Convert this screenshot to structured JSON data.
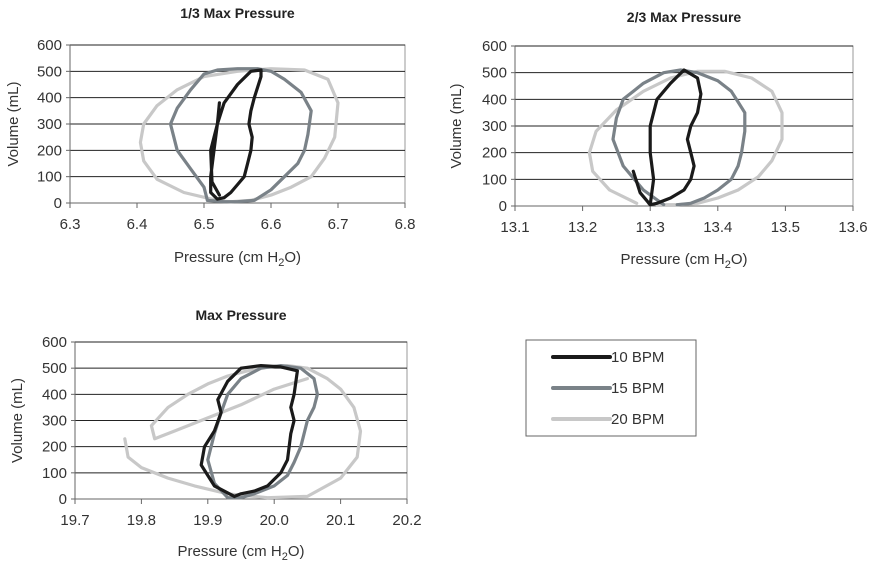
{
  "chart_data": [
    {
      "type": "line",
      "title": "1/3 Max Pressure",
      "xlabel": "Pressure (cm H2O)",
      "xlabel_main": "Pressure (cm H",
      "xlabel_sub": "2",
      "xlabel_tail": "O)",
      "ylabel": "Volume (mL)",
      "xlim": [
        6.3,
        6.8
      ],
      "ylim": [
        0,
        600
      ],
      "xticks": [
        "6.3",
        "6.4",
        "6.5",
        "6.6",
        "6.7",
        "6.8"
      ],
      "yticks": [
        "0",
        "100",
        "200",
        "300",
        "400",
        "500",
        "600"
      ],
      "grid": true,
      "series": [
        {
          "name": "10 BPM",
          "color": "#1a1a1a",
          "x": [
            6.523,
            6.512,
            6.51,
            6.52,
            6.53,
            6.55,
            6.57,
            6.585,
            6.585,
            6.575,
            6.57,
            6.567,
            6.572,
            6.57,
            6.565,
            6.56,
            6.55,
            6.54,
            6.53,
            6.52,
            6.51,
            6.51,
            6.515,
            6.52,
            6.523
          ],
          "y": [
            30,
            80,
            200,
            300,
            380,
            450,
            500,
            505,
            480,
            400,
            350,
            300,
            250,
            200,
            150,
            100,
            70,
            40,
            20,
            15,
            40,
            100,
            200,
            300,
            380
          ]
        },
        {
          "name": "15 BPM",
          "color": "#7a8288",
          "x": [
            6.505,
            6.5,
            6.48,
            6.46,
            6.45,
            6.46,
            6.48,
            6.5,
            6.52,
            6.55,
            6.58,
            6.6,
            6.62,
            6.645,
            6.66,
            6.655,
            6.65,
            6.64,
            6.62,
            6.6,
            6.575,
            6.55,
            6.53,
            6.505
          ],
          "y": [
            10,
            60,
            130,
            200,
            300,
            360,
            430,
            490,
            505,
            510,
            510,
            500,
            470,
            420,
            350,
            260,
            200,
            150,
            100,
            50,
            10,
            5,
            5,
            10
          ]
        },
        {
          "name": "20 BPM",
          "color": "#c8c8c8",
          "x": [
            6.52,
            6.47,
            6.43,
            6.41,
            6.405,
            6.41,
            6.43,
            6.46,
            6.5,
            6.55,
            6.6,
            6.65,
            6.685,
            6.7,
            6.695,
            6.68,
            6.66,
            6.63,
            6.6,
            6.57,
            6.54,
            6.51
          ],
          "y": [
            10,
            40,
            90,
            160,
            230,
            300,
            370,
            430,
            480,
            500,
            510,
            505,
            470,
            380,
            250,
            170,
            100,
            60,
            30,
            10,
            5,
            10
          ]
        }
      ]
    },
    {
      "type": "line",
      "title": "2/3 Max Pressure",
      "xlabel": "Pressure (cm H2O)",
      "xlabel_main": "Pressure (cm H",
      "xlabel_sub": "2",
      "xlabel_tail": "O)",
      "ylabel": "Volume (mL)",
      "xlim": [
        13.1,
        13.6
      ],
      "ylim": [
        0,
        600
      ],
      "xticks": [
        "13.1",
        "13.2",
        "13.3",
        "13.4",
        "13.5",
        "13.6"
      ],
      "yticks": [
        "0",
        "100",
        "200",
        "300",
        "400",
        "500",
        "600"
      ],
      "grid": true,
      "series": [
        {
          "name": "10 BPM",
          "color": "#1a1a1a",
          "x": [
            13.275,
            13.285,
            13.3,
            13.305,
            13.3,
            13.3,
            13.31,
            13.33,
            13.35,
            13.37,
            13.375,
            13.37,
            13.36,
            13.355,
            13.36,
            13.365,
            13.36,
            13.35,
            13.33,
            13.31,
            13.3,
            13.298
          ],
          "y": [
            130,
            50,
            5,
            100,
            200,
            300,
            400,
            460,
            510,
            480,
            420,
            350,
            300,
            250,
            200,
            150,
            100,
            60,
            30,
            10,
            5,
            10
          ]
        },
        {
          "name": "15 BPM",
          "color": "#7a8288",
          "x": [
            13.32,
            13.29,
            13.26,
            13.245,
            13.25,
            13.26,
            13.29,
            13.32,
            13.345,
            13.37,
            13.4,
            13.42,
            13.43,
            13.44,
            13.44,
            13.435,
            13.43,
            13.42,
            13.4,
            13.38,
            13.36,
            13.34
          ],
          "y": [
            5,
            60,
            150,
            250,
            330,
            400,
            460,
            500,
            510,
            500,
            470,
            430,
            390,
            350,
            280,
            200,
            150,
            100,
            60,
            30,
            10,
            5
          ]
        },
        {
          "name": "20 BPM",
          "color": "#c8c8c8",
          "x": [
            13.28,
            13.24,
            13.215,
            13.21,
            13.22,
            13.25,
            13.29,
            13.33,
            13.37,
            13.41,
            13.45,
            13.48,
            13.495,
            13.495,
            13.48,
            13.46,
            13.43,
            13.4,
            13.37,
            13.34,
            13.31
          ],
          "y": [
            10,
            60,
            130,
            200,
            280,
            360,
            430,
            480,
            505,
            505,
            480,
            430,
            350,
            250,
            170,
            110,
            60,
            30,
            10,
            5,
            5
          ]
        }
      ]
    },
    {
      "type": "line",
      "title": "Max Pressure",
      "xlabel": "Pressure (cm H2O)",
      "xlabel_main": "Pressure (cm H",
      "xlabel_sub": "2",
      "xlabel_tail": "O)",
      "ylabel": "Volume (mL)",
      "xlim": [
        19.7,
        20.2
      ],
      "ylim": [
        0,
        600
      ],
      "xticks": [
        "19.7",
        "19.8",
        "19.9",
        "20.0",
        "20.1",
        "20.2"
      ],
      "yticks": [
        "0",
        "100",
        "200",
        "300",
        "400",
        "500",
        "600"
      ],
      "grid": true,
      "series": [
        {
          "name": "10 BPM",
          "color": "#1a1a1a",
          "x": [
            19.94,
            19.91,
            19.89,
            19.895,
            19.91,
            19.92,
            19.915,
            19.93,
            19.95,
            19.98,
            20.01,
            20.035,
            20.03,
            20.025,
            20.03,
            20.025,
            20.02,
            20.01,
            19.99,
            19.97,
            19.95,
            19.94
          ],
          "y": [
            10,
            50,
            130,
            200,
            260,
            330,
            380,
            450,
            500,
            510,
            505,
            490,
            400,
            350,
            300,
            250,
            150,
            100,
            50,
            30,
            20,
            10
          ]
        },
        {
          "name": "15 BPM",
          "color": "#7a8288",
          "x": [
            19.93,
            19.91,
            19.9,
            19.91,
            19.92,
            19.93,
            19.95,
            19.98,
            20.01,
            20.04,
            20.06,
            20.065,
            20.06,
            20.05,
            20.04,
            20.03,
            20.02,
            20.0,
            19.97,
            19.95,
            19.93
          ],
          "y": [
            5,
            60,
            150,
            250,
            330,
            400,
            460,
            500,
            510,
            500,
            460,
            400,
            350,
            300,
            200,
            140,
            90,
            50,
            20,
            5,
            5
          ]
        },
        {
          "name": "20 BPM",
          "color": "#c8c8c8",
          "x": [
            19.775,
            19.78,
            19.8,
            19.84,
            19.88,
            19.93,
            19.99,
            20.05,
            20.1,
            20.125,
            20.13,
            20.12,
            20.1,
            20.08,
            20.05,
            20.02,
            19.99,
            19.96,
            19.93,
            19.9,
            19.87,
            19.84,
            19.815,
            19.82,
            19.85,
            19.9,
            19.95,
            20.0,
            20.05
          ],
          "y": [
            230,
            160,
            120,
            80,
            50,
            20,
            5,
            10,
            80,
            160,
            260,
            350,
            420,
            460,
            500,
            510,
            505,
            490,
            470,
            440,
            400,
            350,
            280,
            230,
            260,
            310,
            360,
            420,
            460
          ]
        }
      ]
    }
  ],
  "legend": {
    "items": [
      {
        "label": "10 BPM",
        "color": "#1a1a1a"
      },
      {
        "label": "15 BPM",
        "color": "#7a8288"
      },
      {
        "label": "20 BPM",
        "color": "#c8c8c8"
      }
    ]
  }
}
